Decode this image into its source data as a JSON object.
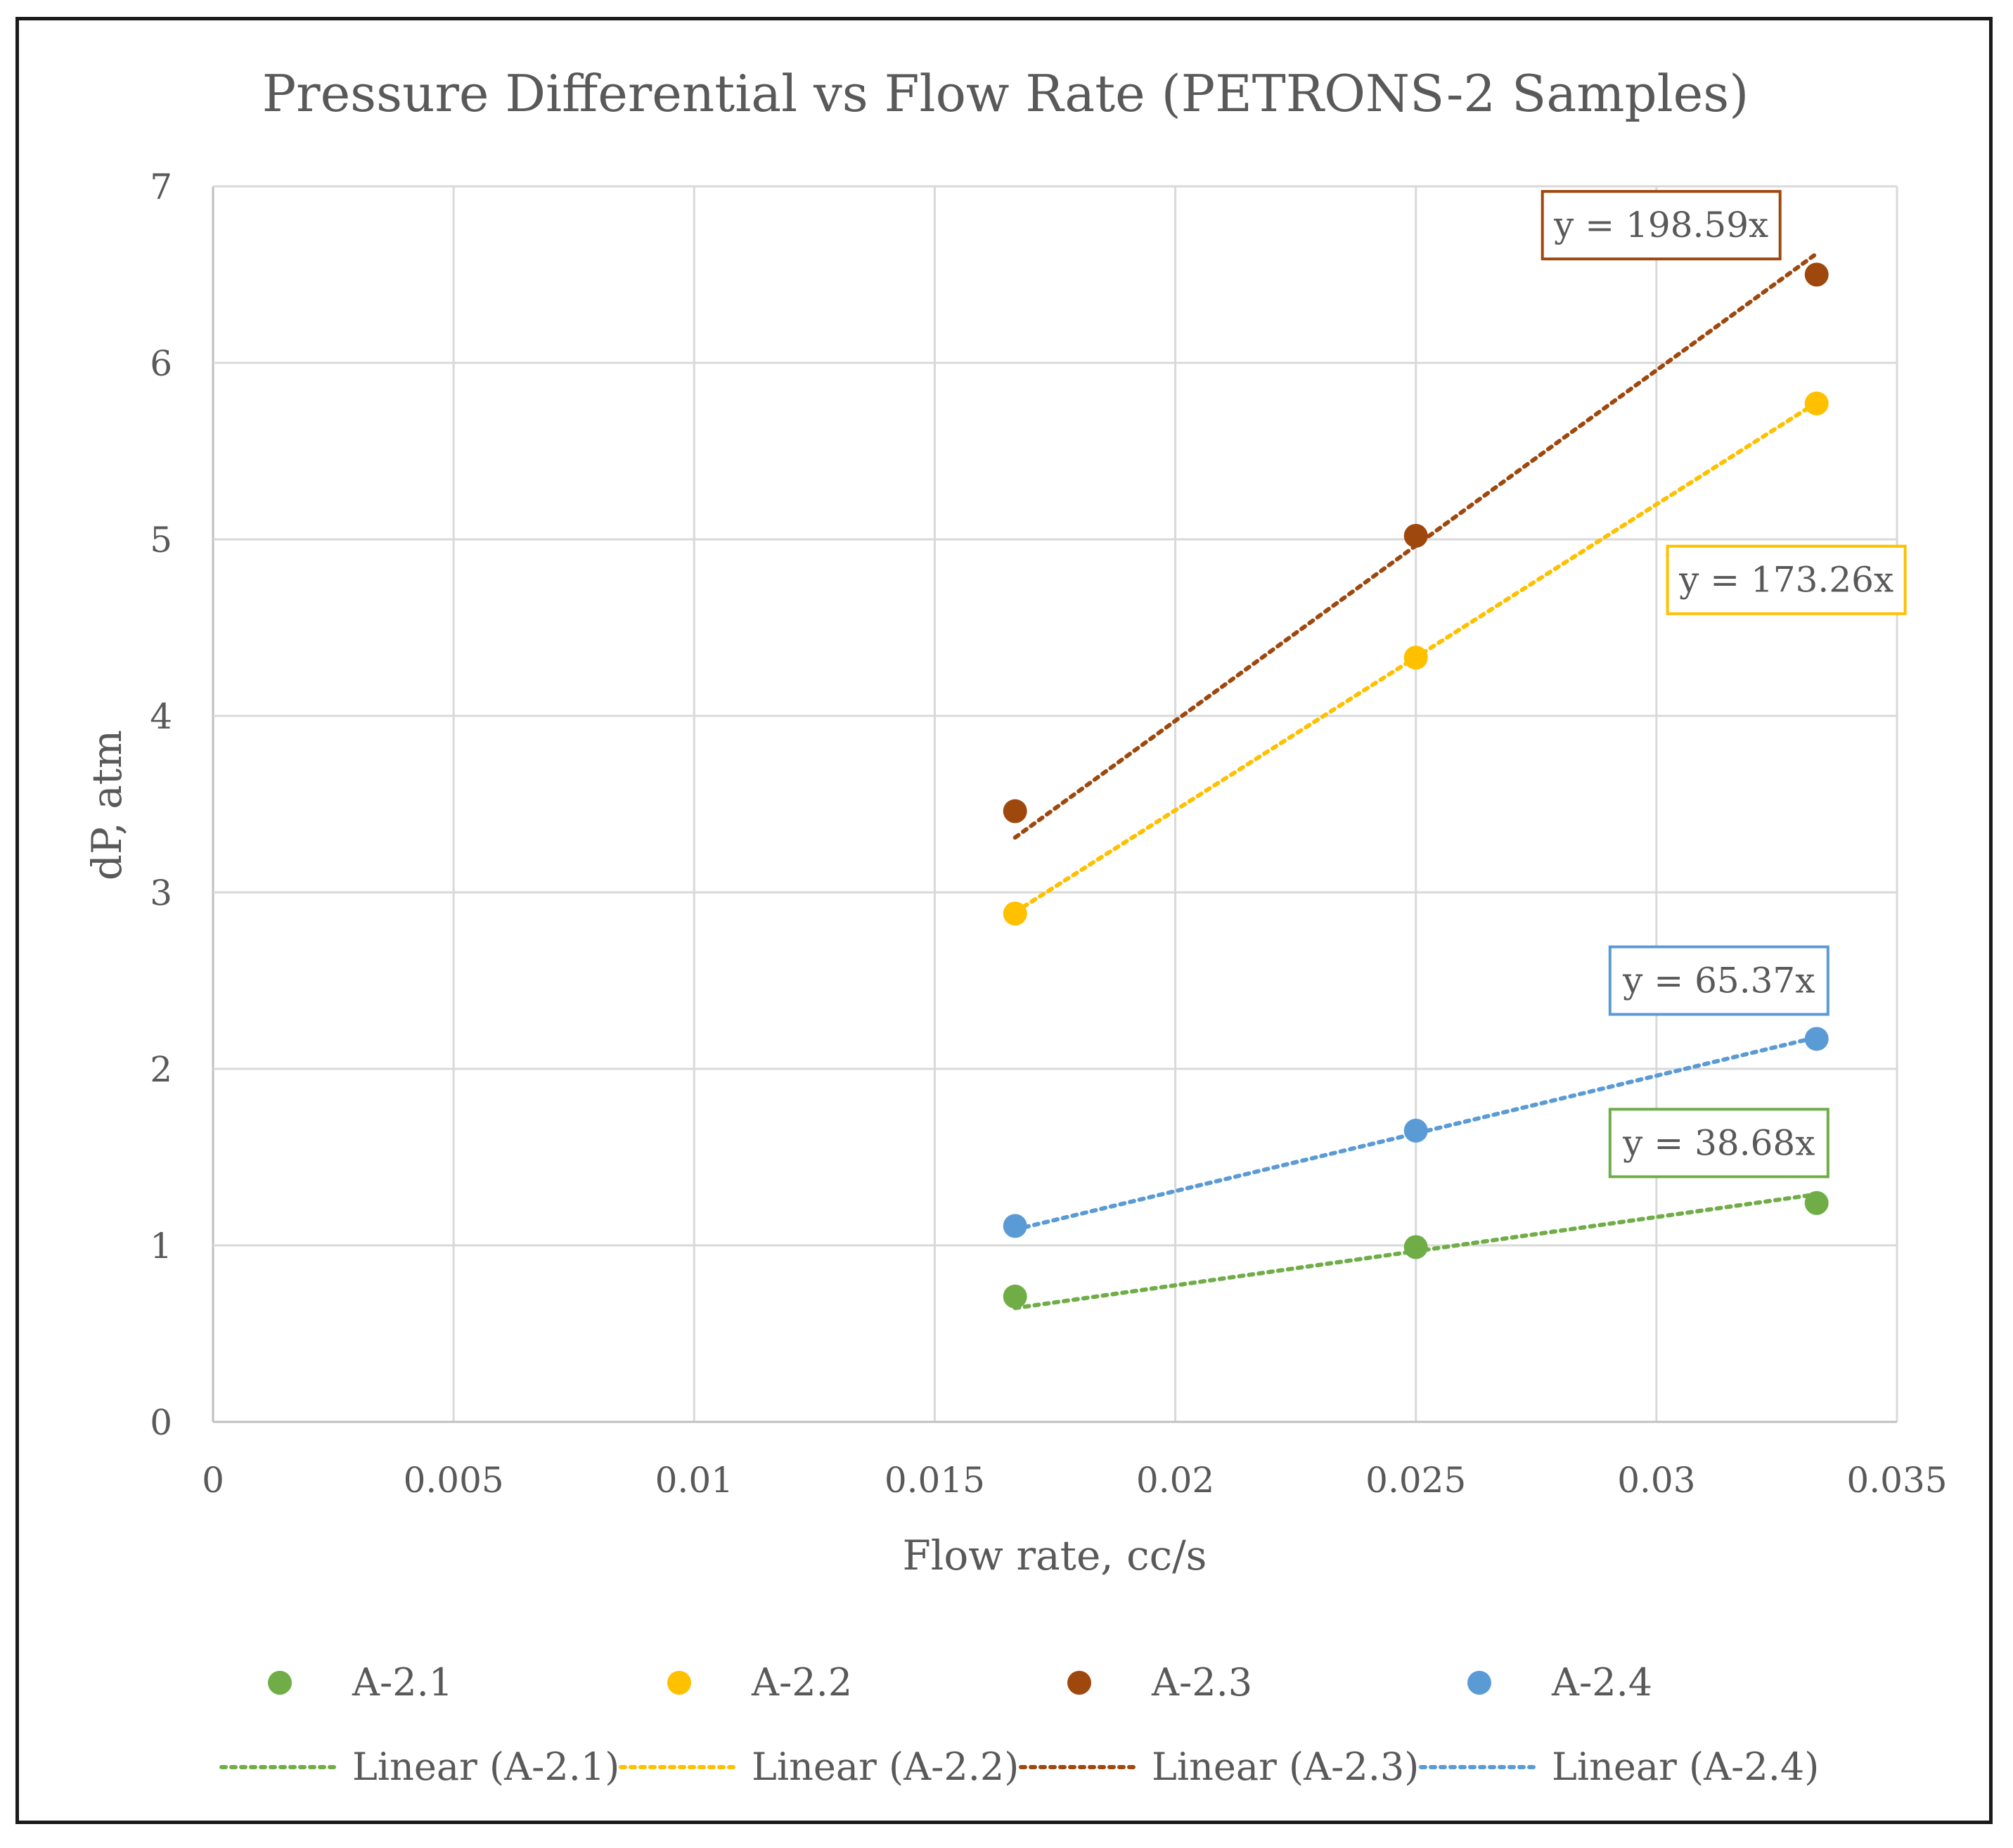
{
  "chart_data": {
    "type": "scatter",
    "title": "Pressure Differential vs Flow Rate (PETRONS-2 Samples)",
    "xlabel": "Flow rate, cc/s",
    "ylabel": "dP, atm",
    "xlim": [
      0,
      0.035
    ],
    "ylim": [
      0,
      7
    ],
    "x_ticks": [
      "0",
      "0.005",
      "0.01",
      "0.015",
      "0.02",
      "0.025",
      "0.03",
      "0.035"
    ],
    "y_ticks": [
      "0",
      "1",
      "2",
      "3",
      "4",
      "5",
      "6",
      "7"
    ],
    "grid": true,
    "legend_position": "bottom",
    "series": [
      {
        "name": "A-2.1",
        "color": "#70ad47",
        "x": [
          0.01667,
          0.025,
          0.03333
        ],
        "y": [
          0.71,
          0.99,
          1.24
        ],
        "trend_name": "Linear (A-2.1)",
        "slope": 38.68,
        "equation": "y = 38.68x"
      },
      {
        "name": "A-2.2",
        "color": "#ffc000",
        "x": [
          0.01667,
          0.025,
          0.03333
        ],
        "y": [
          2.88,
          4.33,
          5.77
        ],
        "trend_name": "Linear (A-2.2)",
        "slope": 173.26,
        "equation": "y = 173.26x"
      },
      {
        "name": "A-2.3",
        "color": "#9e480e",
        "x": [
          0.01667,
          0.025,
          0.03333
        ],
        "y": [
          3.46,
          5.02,
          6.5
        ],
        "trend_name": "Linear (A-2.3)",
        "slope": 198.59,
        "equation": "y = 198.59x"
      },
      {
        "name": "A-2.4",
        "color": "#5b9bd5",
        "x": [
          0.01667,
          0.025,
          0.03333
        ],
        "y": [
          1.11,
          1.65,
          2.17
        ],
        "trend_name": "Linear (A-2.4)",
        "slope": 65.37,
        "equation": "y = 65.37x"
      }
    ]
  }
}
